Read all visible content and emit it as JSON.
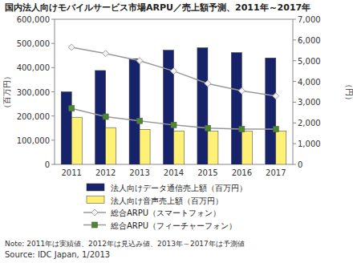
{
  "chart_data": {
    "type": "bar",
    "title": "国内法人向けモバイルサービス市場ARPU／売上額予測、2011年～2017年",
    "y_label": "（百万円）",
    "y2_label": "（円）",
    "note": "Note: 2011年は実績値、2012年は見込み値、2013年～2017年は予測値",
    "source": "Source: IDC Japan, 1/2013",
    "categories": [
      "2011",
      "2012",
      "2013",
      "2014",
      "2015",
      "2016",
      "2017"
    ],
    "series": [
      {
        "name": "法人向けデータ通信売上額（百万円）",
        "type": "bar",
        "color": "#16226a",
        "values": [
          300000,
          388000,
          437000,
          472000,
          482000,
          462000,
          440000
        ]
      },
      {
        "name": "法人向け音声売上額（百万円）",
        "type": "bar",
        "color": "#fff176",
        "values": [
          195000,
          152000,
          145000,
          138000,
          137000,
          137000,
          138000
        ]
      },
      {
        "name": "総合ARPU（スマートフォン）",
        "type": "line",
        "axis": "y2",
        "color": "#a6a6a6",
        "marker": "diamond",
        "values": [
          5650,
          5350,
          5000,
          4500,
          3900,
          3550,
          3300
        ]
      },
      {
        "name": "総合ARPU（フィーチャーフォン）",
        "type": "line",
        "axis": "y2",
        "color": "#4a8a2a",
        "marker": "square",
        "values": [
          2700,
          2300,
          2100,
          1900,
          1750,
          1700,
          1700
        ]
      }
    ],
    "ylim": [
      0,
      600000
    ],
    "yticks": [
      0,
      {
        "value": 100000,
        "label": "100,000"
      },
      {
        "value": 200000,
        "label": "200,000"
      },
      {
        "value": 300000,
        "label": "300,000"
      },
      {
        "value": 400000,
        "label": "400,000"
      },
      {
        "value": 500000,
        "label": "500,000"
      },
      {
        "value": 600000,
        "label": "600,000"
      }
    ],
    "y2lim": [
      0,
      7000
    ],
    "y2ticks": [
      0,
      {
        "value": 1000,
        "label": "1,000"
      },
      {
        "value": 2000,
        "label": "2,000"
      },
      {
        "value": 3000,
        "label": "3,000"
      },
      {
        "value": 4000,
        "label": "4,000"
      },
      {
        "value": 5000,
        "label": "5,000"
      },
      {
        "value": 6000,
        "label": "6,000"
      },
      {
        "value": 7000,
        "label": "7,000"
      }
    ],
    "grid": false,
    "legend": "bottom"
  }
}
